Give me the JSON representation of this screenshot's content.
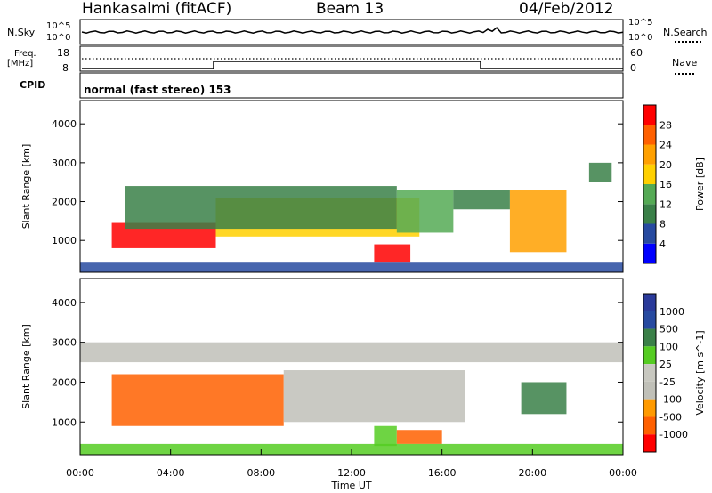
{
  "header": {
    "station": "Hankasalmi (fitACF)",
    "beam": "Beam 13",
    "date": "04/Feb/2012"
  },
  "noise_panel": {
    "left_label": "N.Sky",
    "right_label": "N.Search",
    "ytick_top": "10^5",
    "ytick_bottom": "10^0"
  },
  "freq_panel": {
    "left_label_1": "Freq.",
    "left_label_2": "[MHz]",
    "right_label": "Nave",
    "left_ticks": [
      "18",
      "8"
    ],
    "right_ticks": [
      "60",
      "0"
    ]
  },
  "cpid": {
    "label": "CPID",
    "value": "normal (fast stereo) 153"
  },
  "colors": {
    "power": [
      "#0000ff",
      "#274aa0",
      "#3a8048",
      "#55aa55",
      "#ffd000",
      "#ffa000",
      "#ff6000",
      "#ff0000"
    ],
    "velocity": [
      "#ff0000",
      "#ff6000",
      "#ff9a00",
      "#c0c0b8",
      "#c8c8c0",
      "#55cc22",
      "#3a8048",
      "#274aa0",
      "#2a3a9a"
    ]
  },
  "chart_data": [
    {
      "type": "heatmap",
      "title": "",
      "xlabel": "",
      "ylabel": "Slant Range [km]",
      "x_range": [
        "00:00",
        "24:00"
      ],
      "ylim": [
        180,
        4600
      ],
      "yticks": [
        1000,
        2000,
        3000,
        4000
      ],
      "colorbar": {
        "label": "Power [dB]",
        "range": [
          0,
          32
        ],
        "ticks": [
          4,
          8,
          12,
          16,
          20,
          24,
          28
        ]
      },
      "regions": [
        {
          "t0": 1.4,
          "t1": 6.0,
          "r0": 800,
          "r1": 1450,
          "level": 28
        },
        {
          "t0": 6.0,
          "t1": 15.0,
          "r0": 1100,
          "r1": 2100,
          "level": 16
        },
        {
          "t0": 2.0,
          "t1": 14.0,
          "r0": 1300,
          "r1": 2400,
          "level": 8
        },
        {
          "t0": 13.0,
          "t1": 14.6,
          "r0": 450,
          "r1": 900,
          "level": 28
        },
        {
          "t0": 14.0,
          "t1": 16.5,
          "r0": 1200,
          "r1": 2300,
          "level": 12
        },
        {
          "t0": 16.5,
          "t1": 19.0,
          "r0": 1800,
          "r1": 2300,
          "level": 8
        },
        {
          "t0": 19.0,
          "t1": 21.5,
          "r0": 700,
          "r1": 2300,
          "level": 20
        },
        {
          "t0": 22.5,
          "t1": 23.5,
          "r0": 2500,
          "r1": 3000,
          "level": 8
        },
        {
          "t0": 0.0,
          "t1": 24.0,
          "r0": 180,
          "r1": 450,
          "level": 4
        }
      ]
    },
    {
      "type": "heatmap",
      "title": "",
      "xlabel": "Time UT",
      "ylabel": "Slant Range [km]",
      "x_range": [
        "00:00",
        "24:00"
      ],
      "xticks": [
        "00:00",
        "04:00",
        "08:00",
        "12:00",
        "16:00",
        "20:00",
        "00:00"
      ],
      "ylim": [
        180,
        4600
      ],
      "yticks": [
        1000,
        2000,
        3000,
        4000
      ],
      "colorbar": {
        "label": "Velocity [m s^-1]",
        "ticks": [
          1000,
          500,
          100,
          25,
          -25,
          -100,
          -500,
          -1000
        ]
      },
      "regions": [
        {
          "t0": 1.4,
          "t1": 9.0,
          "r0": 900,
          "r1": 2200,
          "velocity": -300
        },
        {
          "t0": 9.0,
          "t1": 17.0,
          "r0": 1000,
          "r1": 2300,
          "velocity": 0
        },
        {
          "t0": 13.0,
          "t1": 14.0,
          "r0": 400,
          "r1": 900,
          "velocity": 100
        },
        {
          "t0": 14.0,
          "t1": 16.0,
          "r0": 450,
          "r1": 800,
          "velocity": -200
        },
        {
          "t0": 19.5,
          "t1": 21.5,
          "r0": 1200,
          "r1": 2000,
          "velocity": 300
        },
        {
          "t0": 0.0,
          "t1": 24.0,
          "r0": 2500,
          "r1": 3000,
          "velocity": 0
        },
        {
          "t0": 0.0,
          "t1": 24.0,
          "r0": 180,
          "r1": 450,
          "velocity": 50
        }
      ]
    }
  ]
}
